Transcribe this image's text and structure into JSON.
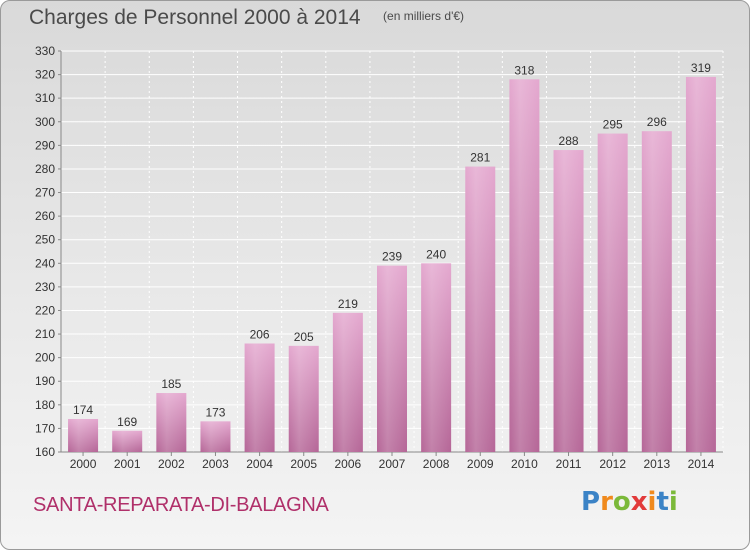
{
  "header": {
    "title": "Charges de Personnel 2000 à 2014",
    "subtitle": "(en milliers d'€)"
  },
  "footer": {
    "commune": "SANTA-REPARATA-DI-BALAGNA",
    "logo_letters": [
      "P",
      "r",
      "o",
      "x",
      "i",
      "t",
      "i"
    ],
    "logo_colors": [
      "#3b83c6",
      "#f08a1d",
      "#7bb93a",
      "#e23a3a",
      "#f08a1d",
      "#3b83c6",
      "#7bb93a"
    ]
  },
  "chart_data": {
    "type": "bar",
    "categories": [
      "2000",
      "2001",
      "2002",
      "2003",
      "2004",
      "2005",
      "2006",
      "2007",
      "2008",
      "2009",
      "2010",
      "2011",
      "2012",
      "2013",
      "2014"
    ],
    "values": [
      174,
      169,
      185,
      173,
      206,
      205,
      219,
      239,
      240,
      281,
      318,
      288,
      295,
      296,
      319
    ],
    "ylim": [
      160,
      330
    ],
    "yticks": [
      160,
      170,
      180,
      190,
      200,
      210,
      220,
      230,
      240,
      250,
      260,
      270,
      280,
      290,
      300,
      310,
      320,
      330
    ],
    "grid": true,
    "bar_color": "#c8609a",
    "data_labels": true
  }
}
